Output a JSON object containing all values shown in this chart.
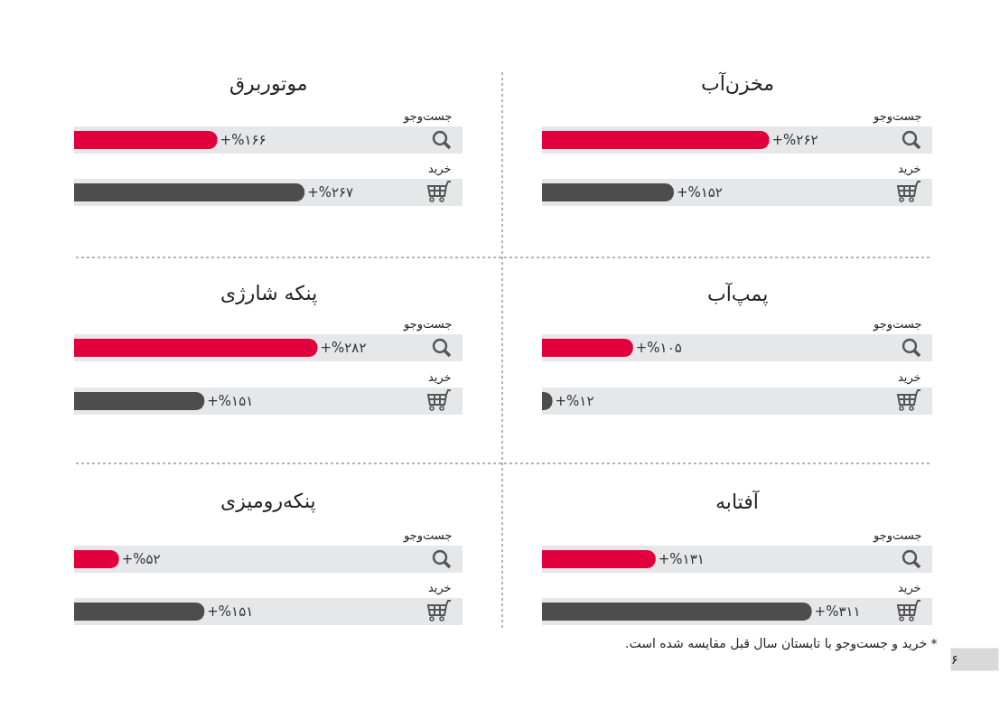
{
  "chart_data": [
    {
      "type": "bar",
      "orientation": "horizontal",
      "title": "مخزن‌آب",
      "categories": [
        "جست‌وجو",
        "خرید"
      ],
      "values": [
        262,
        152
      ],
      "colors": [
        "#e2003c",
        "#4d4d4d"
      ],
      "value_labels": [
        "+%۲۶۲",
        "+%۱۵۲"
      ],
      "xlim": [
        0,
        450
      ],
      "tick_labels": "y",
      "bands": [
        {
          "axis": "x",
          "from": 0,
          "to": 450,
          "color": "#e6e7e9"
        },
        {
          "axis": "x",
          "from": 0,
          "to": 450,
          "color": "#e6e7e9"
        }
      ]
    },
    {
      "type": "bar",
      "orientation": "horizontal",
      "title": "موتوربرق",
      "categories": [
        "جست‌وجو",
        "خرید"
      ],
      "values": [
        166,
        267
      ],
      "colors": [
        "#e2003c",
        "#4d4d4d"
      ],
      "value_labels": [
        "+%۱۶۶",
        "+%۲۶۷"
      ],
      "xlim": [
        0,
        450
      ],
      "tick_labels": "y",
      "bands": [
        {
          "axis": "x",
          "from": 0,
          "to": 450,
          "color": "#e6e7e9"
        },
        {
          "axis": "x",
          "from": 0,
          "to": 450,
          "color": "#e6e7e9"
        }
      ]
    },
    {
      "type": "bar",
      "orientation": "horizontal",
      "title": "پمپ‌آب",
      "categories": [
        "جست‌وجو",
        "خرید"
      ],
      "values": [
        105,
        12
      ],
      "colors": [
        "#e2003c",
        "#4d4d4d"
      ],
      "value_labels": [
        "+%۱۰۵",
        "+%۱۲"
      ],
      "xlim": [
        0,
        450
      ],
      "tick_labels": "y",
      "bands": [
        {
          "axis": "x",
          "from": 0,
          "to": 450,
          "color": "#e6e7e9"
        },
        {
          "axis": "x",
          "from": 0,
          "to": 450,
          "color": "#e6e7e9"
        }
      ]
    },
    {
      "type": "bar",
      "orientation": "horizontal",
      "title": "پنکه شارژی",
      "categories": [
        "جست‌وجو",
        "خرید"
      ],
      "values": [
        282,
        151
      ],
      "colors": [
        "#e2003c",
        "#4d4d4d"
      ],
      "value_labels": [
        "+%۲۸۲",
        "+%۱۵۱"
      ],
      "xlim": [
        0,
        450
      ],
      "tick_labels": "y",
      "bands": [
        {
          "axis": "x",
          "from": 0,
          "to": 450,
          "color": "#e6e7e9"
        },
        {
          "axis": "x",
          "from": 0,
          "to": 450,
          "color": "#e6e7e9"
        }
      ]
    },
    {
      "type": "bar",
      "orientation": "horizontal",
      "title": "آفتابه",
      "categories": [
        "جست‌وجو",
        "خرید"
      ],
      "values": [
        131,
        311
      ],
      "colors": [
        "#e2003c",
        "#4d4d4d"
      ],
      "value_labels": [
        "+%۱۳۱",
        "+%۳۱۱"
      ],
      "xlim": [
        0,
        450
      ],
      "tick_labels": "y",
      "bands": [
        {
          "axis": "x",
          "from": 0,
          "to": 450,
          "color": "#e6e7e9"
        },
        {
          "axis": "x",
          "from": 0,
          "to": 450,
          "color": "#e6e7e9"
        }
      ],
      "annotations": [
        "* خرید و جست‌وجو با تابستان سال قبل مقایسه شده است.",
        "۶"
      ]
    },
    {
      "type": "bar",
      "orientation": "horizontal",
      "title": "پنکه‌رومیزی",
      "categories": [
        "جست‌وجو",
        "خرید"
      ],
      "values": [
        52,
        151
      ],
      "colors": [
        "#e2003c",
        "#4d4d4d"
      ],
      "value_labels": [
        "+%۵۲",
        "+%۱۵۱"
      ],
      "xlim": [
        0,
        450
      ],
      "tick_labels": "y",
      "bands": [
        {
          "axis": "x",
          "from": 0,
          "to": 450,
          "color": "#e6e7e9"
        },
        {
          "axis": "x",
          "from": 0,
          "to": 450,
          "color": "#e6e7e9"
        }
      ]
    }
  ]
}
